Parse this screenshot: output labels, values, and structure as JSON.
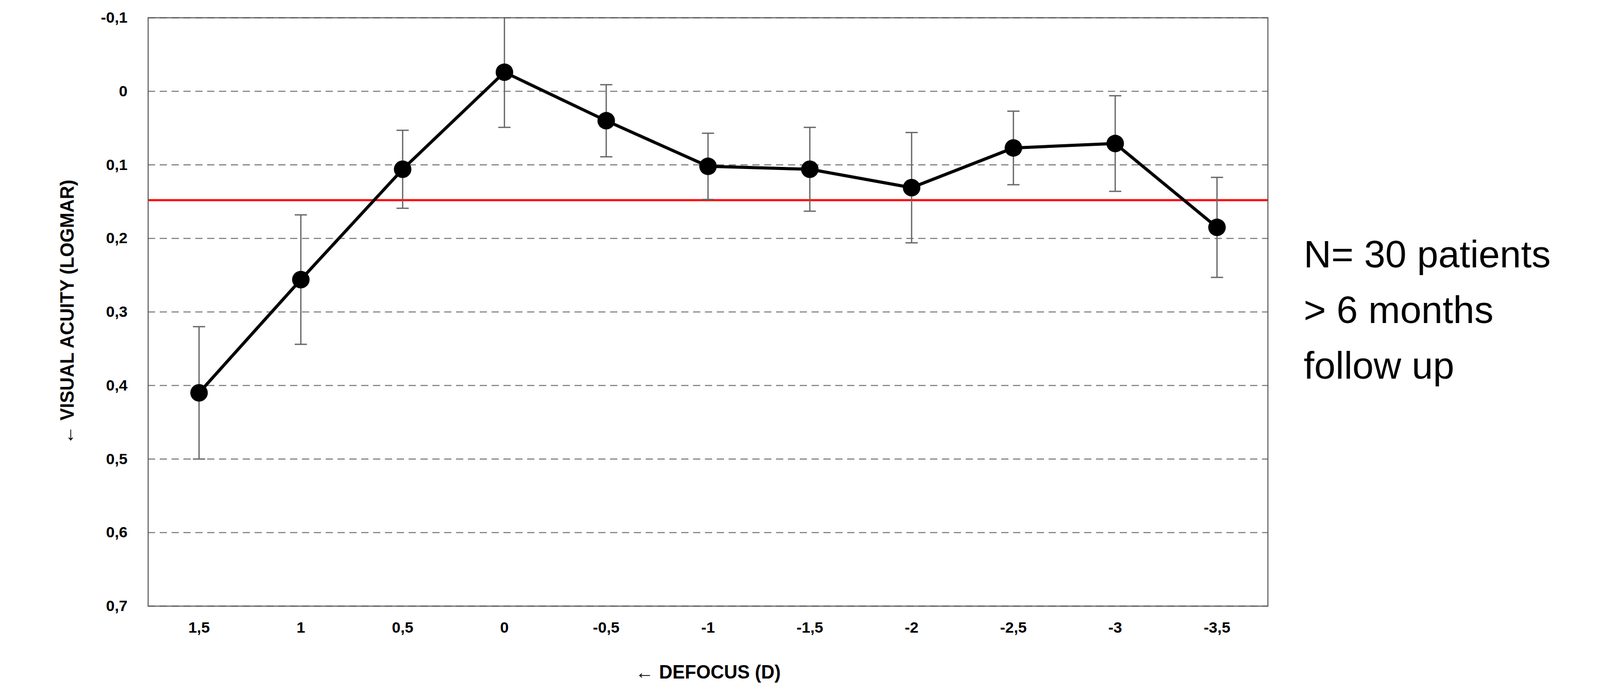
{
  "chart_data": {
    "type": "line",
    "x_label": "DEFOCUS (D)",
    "y_label": "VISUAL ACUITY (LOGMAR)",
    "x": [
      1.5,
      1,
      0.5,
      0,
      -0.5,
      -1,
      -1.5,
      -2,
      -2.5,
      -3,
      -3.5
    ],
    "values": [
      0.41,
      0.256,
      0.106,
      -0.026,
      0.04,
      0.102,
      0.106,
      0.131,
      0.077,
      0.071,
      0.185
    ],
    "errors": [
      0.09,
      0.088,
      0.053,
      0.075,
      0.049,
      0.045,
      0.057,
      0.075,
      0.05,
      0.065,
      0.068
    ],
    "color": "#000000",
    "marker": "circle",
    "line_style": "solid",
    "reference_line": {
      "value": 0.148,
      "color": "#ff0000"
    },
    "annotation": [
      "N= 30 patients",
      "> 6 months",
      "follow up"
    ],
    "xlim": [
      1.75,
      -3.75
    ],
    "xticks": [
      {
        "value": 1.5,
        "label": "1,5"
      },
      1,
      {
        "value": 0.5,
        "label": "0,5"
      },
      0,
      {
        "value": -0.5,
        "label": "-0,5"
      },
      -1,
      {
        "value": -1.5,
        "label": "-1,5"
      },
      -2,
      {
        "value": -2.5,
        "label": "-2,5"
      },
      -3,
      {
        "value": -3.5,
        "label": "-3,5"
      }
    ],
    "ylim": [
      0.7,
      -0.1
    ],
    "yticks": [
      {
        "value": -0.1,
        "label": "-0,1"
      },
      0,
      {
        "value": 0.1,
        "label": "0,1"
      },
      {
        "value": 0.2,
        "label": "0,2"
      },
      {
        "value": 0.3,
        "label": "0,3"
      },
      {
        "value": 0.4,
        "label": "0,4"
      },
      {
        "value": 0.5,
        "label": "0,5"
      },
      {
        "value": 0.6,
        "label": "0,6"
      },
      {
        "value": 0.7,
        "label": "0,7"
      }
    ],
    "grid": true
  }
}
